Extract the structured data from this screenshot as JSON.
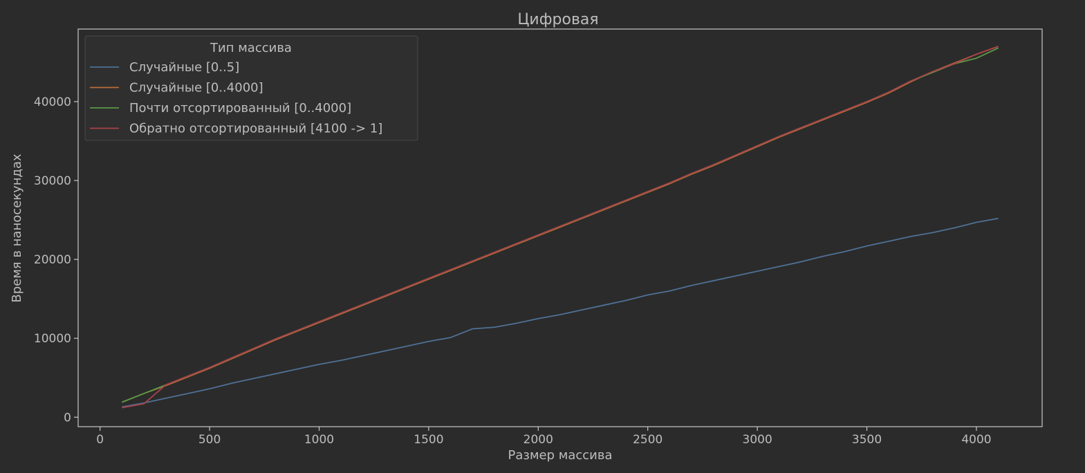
{
  "chart_data": {
    "type": "line",
    "title": "Цифровая",
    "xlabel": "Размер массива",
    "ylabel": "Время в наносекундах",
    "xlim": [
      -100,
      4300
    ],
    "ylim": [
      -1200,
      49200
    ],
    "xticks": [
      0,
      500,
      1000,
      1500,
      2000,
      2500,
      3000,
      3500,
      4000
    ],
    "yticks": [
      0,
      10000,
      20000,
      30000,
      40000
    ],
    "grid": false,
    "legend": {
      "title": "Тип массива",
      "placement": "top-left"
    },
    "x": [
      100,
      200,
      300,
      400,
      500,
      600,
      700,
      800,
      900,
      1000,
      1100,
      1200,
      1300,
      1400,
      1500,
      1600,
      1700,
      1800,
      1900,
      2000,
      2100,
      2200,
      2300,
      2400,
      2500,
      2600,
      2700,
      2800,
      2900,
      3000,
      3100,
      3200,
      3300,
      3400,
      3500,
      3600,
      3700,
      3800,
      3900,
      4000,
      4100
    ],
    "series": [
      {
        "name": "Случайные [0..5]",
        "color": "#4f7196",
        "values": [
          1300,
          1800,
          2400,
          3000,
          3600,
          4300,
          4900,
          5500,
          6100,
          6700,
          7200,
          7800,
          8400,
          9000,
          9600,
          10100,
          11200,
          11400,
          11900,
          12500,
          13000,
          13600,
          14200,
          14800,
          15500,
          16000,
          16700,
          17300,
          17900,
          18500,
          19100,
          19700,
          20400,
          21000,
          21700,
          22300,
          22900,
          23400,
          24000,
          24700,
          25200
        ]
      },
      {
        "name": "Случайные [0..4000]",
        "color": "#b96f37",
        "values": [
          1900,
          3000,
          4000,
          5100,
          6200,
          7400,
          8600,
          9800,
          10900,
          12000,
          13100,
          14200,
          15300,
          16400,
          17500,
          18600,
          19700,
          20800,
          21900,
          23000,
          24100,
          25200,
          26300,
          27400,
          28500,
          29600,
          30800,
          31900,
          33100,
          34300,
          35500,
          36600,
          37700,
          38800,
          39900,
          41100,
          42500,
          43800,
          44900,
          46000,
          47000
        ]
      },
      {
        "name": "Почти отсортированный [0..4000]",
        "color": "#5a9a45",
        "values": [
          1900,
          3000,
          4100,
          5200,
          6300,
          7500,
          8700,
          9900,
          11000,
          12100,
          13200,
          14300,
          15400,
          16500,
          17600,
          18700,
          19800,
          20900,
          22000,
          23100,
          24200,
          25300,
          26400,
          27500,
          28600,
          29700,
          30900,
          32000,
          33200,
          34400,
          35600,
          36700,
          37800,
          38900,
          40000,
          41200,
          42600,
          43700,
          44800,
          45500,
          46800
        ]
      },
      {
        "name": "Обратно отсортированный [4100 -> 1]",
        "color": "#a8424a",
        "values": [
          1200,
          1700,
          4100,
          5200,
          6300,
          7500,
          8700,
          9900,
          11000,
          12100,
          13200,
          14300,
          15400,
          16500,
          17600,
          18700,
          19800,
          20900,
          22000,
          23100,
          24200,
          25300,
          26400,
          27500,
          28600,
          29700,
          30900,
          32000,
          33200,
          34400,
          35600,
          36700,
          37800,
          38900,
          40000,
          41200,
          42600,
          43800,
          44800,
          46000,
          47000
        ]
      }
    ]
  }
}
